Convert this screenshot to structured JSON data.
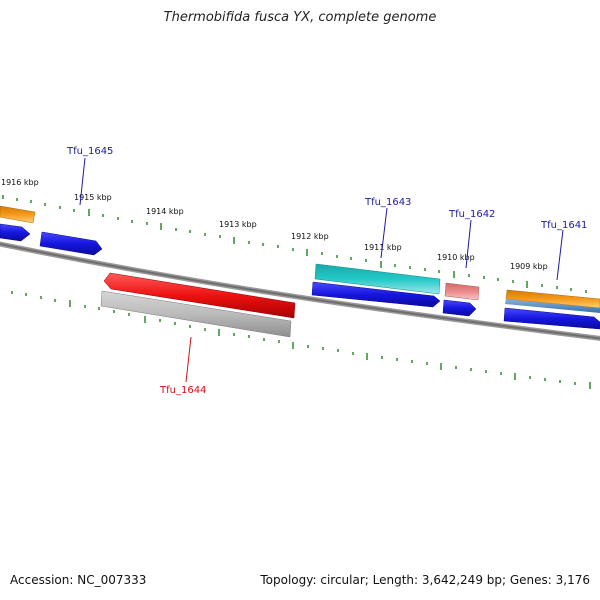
{
  "title": "Thermobifida fusca YX, complete genome",
  "accession": "Accession: NC_007333",
  "summary": "Topology: circular; Length: 3,642,249 bp; Genes: 3,176",
  "kbp_labels": [
    "1916 kbp",
    "1915 kbp",
    "1914 kbp",
    "1913 kbp",
    "1912 kbp",
    "1911 kbp",
    "1910 kbp",
    "1909 kbp"
  ],
  "gene_labels": {
    "tfu_1645": "Tfu_1645",
    "tfu_1644": "Tfu_1644",
    "tfu_1643": "Tfu_1643",
    "tfu_1642": "Tfu_1642",
    "tfu_1641": "Tfu_1641"
  },
  "colors": {
    "backbone": "#777777",
    "tick": "#2a8a2a",
    "cds_forward": "#1616e0",
    "cds_reverse": "#1616e0",
    "gene_red": "#ee1111",
    "gene_gray": "#bbbbbb",
    "gene_cyan": "#22c8c8",
    "gene_pink": "#ec8a8a",
    "gene_orange": "#f59a1a",
    "gene_steelblue": "#5a90c8",
    "label_blue": "#1a1aa6",
    "label_red": "#cc1111"
  }
}
